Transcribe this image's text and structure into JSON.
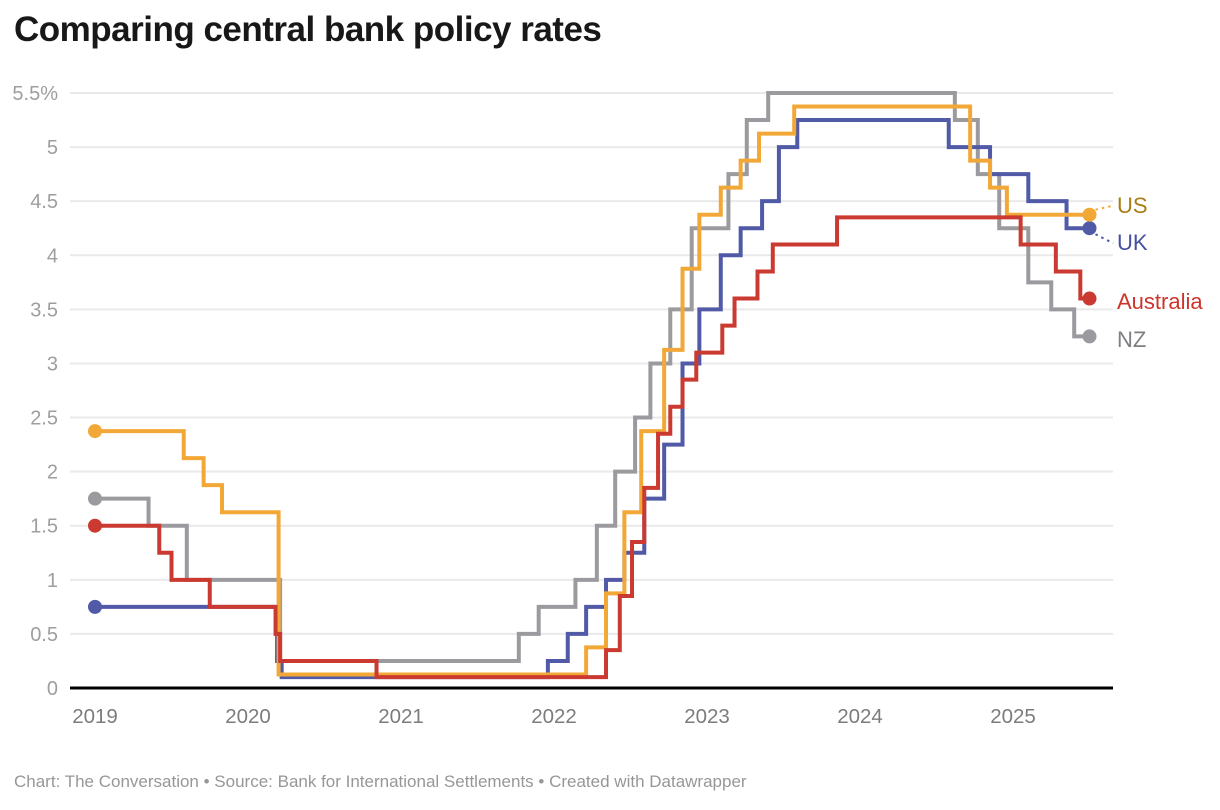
{
  "header": {
    "title": "Comparing central bank policy rates"
  },
  "footer": {
    "text": "Chart: The Conversation • Source: Bank for International Settlements • Created with Datawrapper"
  },
  "chart_data": {
    "type": "line",
    "step": true,
    "title": "Comparing central bank policy rates",
    "unit": "percent",
    "xlim": [
      2019,
      2025.5
    ],
    "ylim": [
      0,
      5.5
    ],
    "grid": "horizontal",
    "legend_position": "right-edge-labels",
    "colors": {
      "grid": "#E9E9E9",
      "zero_axis": "#000000",
      "y_tick_text": "#9E9E9E",
      "x_tick_text": "#7C7C7C"
    },
    "x_ticks": [
      "2019",
      "2020",
      "2021",
      "2022",
      "2023",
      "2024",
      "2025"
    ],
    "y_ticks": [
      {
        "value": 5.5,
        "label": "5.5%"
      },
      {
        "value": 5,
        "label": "5"
      },
      {
        "value": 4.5,
        "label": "4.5"
      },
      {
        "value": 4,
        "label": "4"
      },
      {
        "value": 3.5,
        "label": "3.5"
      },
      {
        "value": 3,
        "label": "3"
      },
      {
        "value": 2.5,
        "label": "2.5"
      },
      {
        "value": 2,
        "label": "2"
      },
      {
        "value": 1.5,
        "label": "1.5"
      },
      {
        "value": 1,
        "label": "1"
      },
      {
        "value": 0.5,
        "label": "0.5"
      },
      {
        "value": 0,
        "label": "0"
      }
    ],
    "series": [
      {
        "name": "US",
        "color": "#F2A837",
        "label_color": "#A97D15",
        "leader": "up",
        "end_value": 4.375,
        "values": [
          [
            2019.0,
            2.375
          ],
          [
            2019.58,
            2.125
          ],
          [
            2019.71,
            1.875
          ],
          [
            2019.83,
            1.625
          ],
          [
            2020.2,
            0.125
          ],
          [
            2022.21,
            0.375
          ],
          [
            2022.34,
            0.875
          ],
          [
            2022.46,
            1.625
          ],
          [
            2022.57,
            2.375
          ],
          [
            2022.72,
            3.125
          ],
          [
            2022.84,
            3.875
          ],
          [
            2022.95,
            4.375
          ],
          [
            2023.09,
            4.625
          ],
          [
            2023.22,
            4.875
          ],
          [
            2023.34,
            5.125
          ],
          [
            2023.57,
            5.375
          ],
          [
            2024.72,
            4.875
          ],
          [
            2024.85,
            4.625
          ],
          [
            2024.96,
            4.375
          ]
        ]
      },
      {
        "name": "UK",
        "color": "#515AA6",
        "label_color": "#4550A2",
        "leader": "down",
        "end_value": 4.25,
        "values": [
          [
            2019.0,
            0.75
          ],
          [
            2020.19,
            0.25
          ],
          [
            2020.22,
            0.1
          ],
          [
            2021.96,
            0.25
          ],
          [
            2022.09,
            0.5
          ],
          [
            2022.21,
            0.75
          ],
          [
            2022.34,
            1.0
          ],
          [
            2022.46,
            1.25
          ],
          [
            2022.59,
            1.75
          ],
          [
            2022.72,
            2.25
          ],
          [
            2022.84,
            3.0
          ],
          [
            2022.95,
            3.5
          ],
          [
            2023.09,
            4.0
          ],
          [
            2023.22,
            4.25
          ],
          [
            2023.36,
            4.5
          ],
          [
            2023.47,
            5.0
          ],
          [
            2023.59,
            5.25
          ],
          [
            2024.58,
            5.0
          ],
          [
            2024.85,
            4.75
          ],
          [
            2025.1,
            4.5
          ],
          [
            2025.35,
            4.25
          ]
        ]
      },
      {
        "name": "Australia",
        "color": "#CB3A30",
        "label_color": "#CE342C",
        "leader": null,
        "end_value": 3.6,
        "values": [
          [
            2019.0,
            1.5
          ],
          [
            2019.42,
            1.25
          ],
          [
            2019.5,
            1.0
          ],
          [
            2019.75,
            0.75
          ],
          [
            2020.18,
            0.5
          ],
          [
            2020.21,
            0.25
          ],
          [
            2020.84,
            0.1
          ],
          [
            2022.34,
            0.35
          ],
          [
            2022.43,
            0.85
          ],
          [
            2022.51,
            1.35
          ],
          [
            2022.59,
            1.85
          ],
          [
            2022.68,
            2.35
          ],
          [
            2022.76,
            2.6
          ],
          [
            2022.84,
            2.85
          ],
          [
            2022.93,
            3.1
          ],
          [
            2023.1,
            3.35
          ],
          [
            2023.18,
            3.6
          ],
          [
            2023.33,
            3.85
          ],
          [
            2023.43,
            4.1
          ],
          [
            2023.85,
            4.35
          ],
          [
            2025.05,
            4.1
          ],
          [
            2025.28,
            3.85
          ],
          [
            2025.44,
            3.6
          ]
        ]
      },
      {
        "name": "NZ",
        "color": "#9B9B9F",
        "label_color": "#7E7F82",
        "leader": null,
        "end_value": 3.25,
        "values": [
          [
            2019.0,
            1.75
          ],
          [
            2019.35,
            1.5
          ],
          [
            2019.6,
            1.0
          ],
          [
            2020.21,
            0.25
          ],
          [
            2021.77,
            0.5
          ],
          [
            2021.9,
            0.75
          ],
          [
            2022.14,
            1.0
          ],
          [
            2022.28,
            1.5
          ],
          [
            2022.4,
            2.0
          ],
          [
            2022.53,
            2.5
          ],
          [
            2022.63,
            3.0
          ],
          [
            2022.76,
            3.5
          ],
          [
            2022.9,
            4.25
          ],
          [
            2023.14,
            4.75
          ],
          [
            2023.26,
            5.25
          ],
          [
            2023.4,
            5.5
          ],
          [
            2024.62,
            5.25
          ],
          [
            2024.77,
            4.75
          ],
          [
            2024.91,
            4.25
          ],
          [
            2025.1,
            3.75
          ],
          [
            2025.25,
            3.5
          ],
          [
            2025.4,
            3.25
          ]
        ]
      }
    ]
  }
}
